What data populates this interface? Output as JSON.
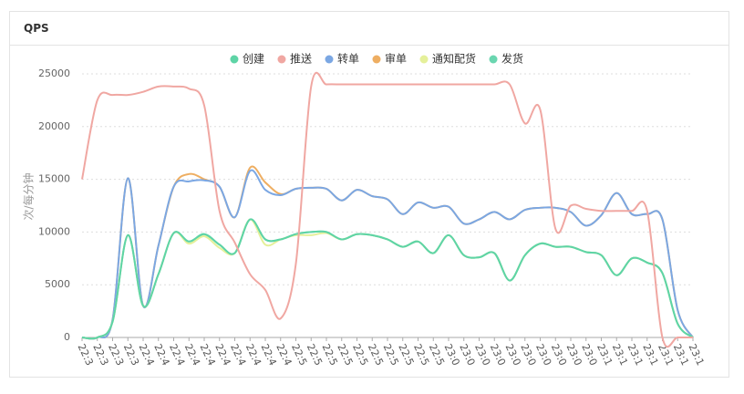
{
  "header": {
    "title": "QPS"
  },
  "chart_data": {
    "type": "line",
    "y_label": "次/每分钟",
    "categories": [
      "22:3",
      "22:3",
      "22:3",
      "22:3",
      "22:4",
      "22:4",
      "22:4",
      "22:4",
      "22:4",
      "22:4",
      "22:4",
      "22:4",
      "22:4",
      "22:4",
      "22:5",
      "22:5",
      "22:5",
      "22:5",
      "22:5",
      "22:5",
      "22:5",
      "22:5",
      "22:5",
      "22:5",
      "23:0",
      "23:0",
      "23:0",
      "23:0",
      "23:0",
      "23:0",
      "23:0",
      "23:0",
      "23:0",
      "23:0",
      "23:1",
      "23:1",
      "23:1",
      "23:1",
      "23:1",
      "23:1",
      "23:1"
    ],
    "ylim": [
      0,
      25000
    ],
    "yticks": [
      0,
      5000,
      10000,
      15000,
      20000,
      25000
    ],
    "grid": true,
    "series": [
      {
        "name": "创建",
        "color": "#5ed4a6",
        "values": [
          0,
          0,
          1500,
          9700,
          3000,
          6000,
          9900,
          9100,
          9800,
          8800,
          8000,
          11200,
          9300,
          9300,
          9800,
          10000,
          10000,
          9300,
          9800,
          9700,
          9300,
          8600,
          9100,
          8000,
          9700,
          7800,
          7600,
          8000,
          5400,
          7800,
          8900,
          8600,
          8600,
          8100,
          7800,
          5900,
          7500,
          7100,
          6100,
          1300,
          0
        ]
      },
      {
        "name": "推送",
        "color": "#f0a7a2",
        "values": [
          15000,
          22500,
          23000,
          23000,
          23300,
          23800,
          23800,
          23600,
          22000,
          12000,
          9000,
          6000,
          4500,
          1800,
          7000,
          23800,
          24000,
          24000,
          24000,
          24000,
          24000,
          24000,
          24000,
          24000,
          24000,
          24000,
          24000,
          24000,
          24000,
          20300,
          21600,
          10300,
          12500,
          12200,
          12000,
          12000,
          12000,
          12000,
          0,
          0,
          0
        ]
      },
      {
        "name": "转单",
        "color": "#7ba7e3",
        "values": [
          0,
          0,
          1700,
          15100,
          3000,
          8700,
          14300,
          14800,
          14900,
          14300,
          11400,
          15800,
          14000,
          13500,
          14100,
          14200,
          14100,
          13000,
          14000,
          13400,
          13100,
          11700,
          12800,
          12300,
          12400,
          10800,
          11200,
          11900,
          11200,
          12100,
          12300,
          12300,
          11900,
          10600,
          11600,
          13700,
          11700,
          11700,
          11200,
          2600,
          0
        ]
      },
      {
        "name": "审单",
        "color": "#eeae62",
        "values": [
          0,
          0,
          1700,
          15100,
          3000,
          8700,
          14300,
          15500,
          15000,
          14300,
          11400,
          16100,
          14700,
          13600,
          14100,
          14200,
          14100,
          13000,
          14000,
          13400,
          13100,
          11700,
          12800,
          12300,
          12400,
          10800,
          11200,
          11900,
          11200,
          12100,
          12300,
          12300,
          11900,
          10600,
          11600,
          13700,
          11700,
          11700,
          11200,
          2600,
          0
        ]
      },
      {
        "name": "通知配货",
        "color": "#e5f09a",
        "values": [
          0,
          0,
          1500,
          9700,
          3000,
          6000,
          9900,
          8900,
          9600,
          8500,
          8000,
          11200,
          8800,
          9300,
          9700,
          9700,
          9900,
          9300,
          9800,
          9700,
          9300,
          8600,
          9100,
          8000,
          9700,
          7800,
          7600,
          8000,
          5400,
          7800,
          8900,
          8600,
          8600,
          8100,
          7800,
          5900,
          7500,
          7100,
          6100,
          1300,
          0
        ]
      },
      {
        "name": "发货",
        "color": "#6ad6b0",
        "values": [
          0,
          0,
          1500,
          9700,
          3000,
          6000,
          9900,
          9100,
          9800,
          8800,
          8000,
          11200,
          9300,
          9300,
          9800,
          10000,
          10000,
          9300,
          9800,
          9700,
          9300,
          8600,
          9100,
          8000,
          9700,
          7800,
          7600,
          8000,
          5400,
          7800,
          8900,
          8600,
          8600,
          8100,
          7800,
          5900,
          7500,
          7100,
          6100,
          1300,
          0
        ]
      }
    ]
  }
}
